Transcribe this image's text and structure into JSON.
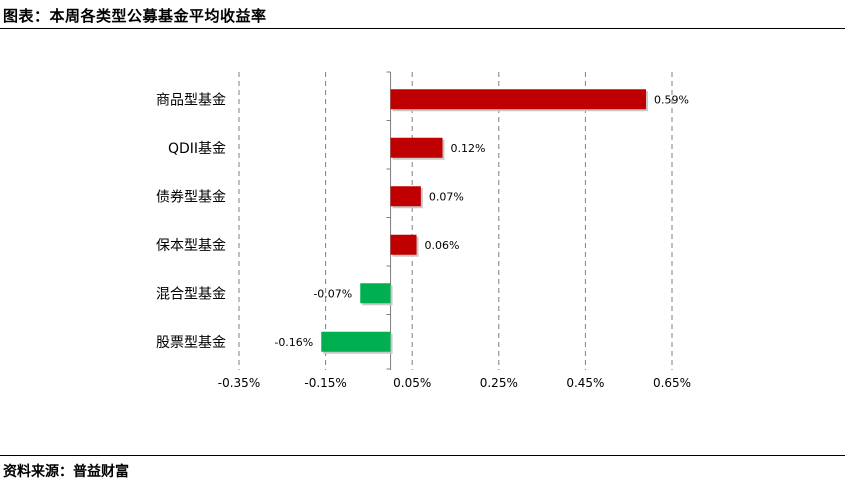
{
  "header": {
    "title": "图表：本周各类型公募基金平均收益率"
  },
  "footer": {
    "source": "资料来源：普益财富"
  },
  "chart_data": {
    "type": "bar",
    "orientation": "horizontal",
    "title": "",
    "xlabel": "",
    "ylabel": "",
    "categories": [
      "商品型基金",
      "QDII基金",
      "债券型基金",
      "保本型基金",
      "混合型基金",
      "股票型基金"
    ],
    "values": [
      0.59,
      0.12,
      0.07,
      0.06,
      -0.07,
      -0.16
    ],
    "data_labels": [
      "0.59%",
      "0.12%",
      "0.07%",
      "0.06%",
      "-0.07%",
      "-0.16%"
    ],
    "xlim": [
      -0.35,
      0.65
    ],
    "xticks": [
      -0.35,
      -0.15,
      0.05,
      0.25,
      0.45,
      0.65
    ],
    "xtick_labels": [
      "-0.35%",
      "-0.15%",
      "0.05%",
      "0.25%",
      "0.45%",
      "0.65%"
    ],
    "grid": "vertical-dashed",
    "colors": {
      "positive": "#c00000",
      "negative": "#00b050"
    }
  }
}
